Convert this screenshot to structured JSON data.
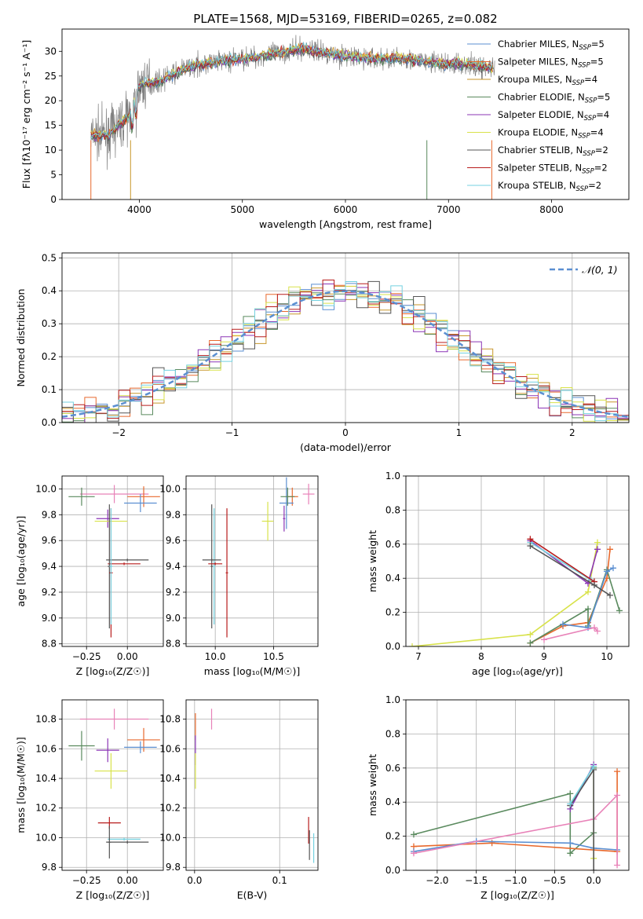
{
  "title": "PLATE=1568, MJD=53169, FIBERID=0265, z=0.082",
  "colors": {
    "Chabrier MILES": "#5b8fd1",
    "Salpeter MILES": "#e8692d",
    "Kroupa MILES": "#c8962a",
    "Chabrier ELODIE": "#5a8a5e",
    "Salpeter ELODIE": "#8b35b5",
    "Kroupa ELODIE": "#d8e24a",
    "Chabrier STELIB": "#555555",
    "Salpeter STELIB": "#b81d1d",
    "Kroupa STELIB": "#74d1e0",
    "Kroupa MILES pink": "#e882b8"
  },
  "chart_data": [
    {
      "id": "spectrum",
      "type": "line",
      "title": "PLATE=1568, MJD=53169, FIBERID=0265, z=0.082",
      "xlabel": "wavelength [Angstrom, rest frame]",
      "ylabel": "Flux [fλ10⁻¹⁷ erg cm⁻² s⁻¹ A⁻¹]",
      "xlim": [
        3250,
        8750
      ],
      "ylim": [
        0,
        34.5
      ],
      "xticks": [
        4000,
        5000,
        6000,
        7000,
        8000
      ],
      "yticks": [
        0,
        5,
        10,
        15,
        20,
        25,
        30
      ],
      "grid": false,
      "legend": "right",
      "legend_entries": [
        {
          "name": "Chabrier MILES",
          "sub": "SSP",
          "n": "=5"
        },
        {
          "name": "Salpeter MILES",
          "sub": "SSP",
          "n": "=5"
        },
        {
          "name": "Kroupa MILES",
          "sub": "SSP",
          "n": "=4"
        },
        {
          "name": "Chabrier ELODIE",
          "sub": "SSP",
          "n": "=5"
        },
        {
          "name": "Salpeter ELODIE",
          "sub": "SSP",
          "n": "=4"
        },
        {
          "name": "Kroupa ELODIE",
          "sub": "SSP",
          "n": "=4"
        },
        {
          "name": "Chabrier STELIB",
          "sub": "SSP",
          "n": "=2"
        },
        {
          "name": "Salpeter STELIB",
          "sub": "SSP",
          "n": "=2"
        },
        {
          "name": "Kroupa STELIB",
          "sub": "SSP",
          "n": "=2"
        }
      ],
      "envelope": {
        "x": [
          3530,
          3700,
          3900,
          4000,
          4200,
          4500,
          4800,
          5000,
          5300,
          5600,
          6000,
          6300,
          6600,
          6900,
          7100,
          7300,
          7450
        ],
        "y": [
          13,
          13,
          17,
          23,
          24,
          27,
          28,
          28.5,
          29.5,
          30.5,
          29,
          28.5,
          28.5,
          27.5,
          27.5,
          27,
          26.5
        ]
      }
    },
    {
      "id": "residuals",
      "type": "histogram",
      "xlabel": "(data-model)/error",
      "ylabel": "Normed distribution",
      "xlim": [
        -2.5,
        2.5
      ],
      "ylim": [
        0,
        0.515
      ],
      "xticks": [
        -2,
        -1,
        0,
        1,
        2
      ],
      "yticks": [
        0.0,
        0.1,
        0.2,
        0.3,
        0.4,
        0.5
      ],
      "grid": true,
      "legend": "top-right",
      "legend_entries": [
        {
          "name": "𝒩(0, 1)"
        }
      ]
    },
    {
      "id": "age-vs-Z",
      "type": "scatter",
      "xlabel": "Z [log₁₀(Z/Z☉)]",
      "ylabel": "age  [log₁₀(age/yr)]",
      "xlim": [
        -0.4,
        0.22
      ],
      "ylim": [
        8.78,
        10.1
      ],
      "xticks": [
        -0.25,
        0.0
      ],
      "yticks": [
        8.8,
        9.0,
        9.2,
        9.4,
        9.6,
        9.8,
        10.0
      ],
      "grid": true,
      "errorbars": [
        {
          "model": "Kroupa MILES pink",
          "x": -0.08,
          "y": 9.96,
          "xerr": 0.21,
          "yerr": 0.07
        },
        {
          "model": "Salpeter MILES",
          "x": 0.1,
          "y": 9.94,
          "xerr": 0.1,
          "yerr": 0.08
        },
        {
          "model": "Chabrier MILES",
          "x": 0.08,
          "y": 9.89,
          "xerr": 0.1,
          "yerr": 0.07
        },
        {
          "model": "Chabrier ELODIE",
          "x": -0.28,
          "y": 9.94,
          "xerr": 0.08,
          "yerr": 0.07
        },
        {
          "model": "Salpeter ELODIE",
          "x": -0.12,
          "y": 9.77,
          "xerr": 0.07,
          "yerr": 0.07
        },
        {
          "model": "Kroupa ELODIE",
          "x": -0.1,
          "y": 9.75,
          "xerr": 0.1,
          "yerr": 0.07
        },
        {
          "model": "Chabrier STELIB",
          "x": 0.0,
          "y": 9.45,
          "xerr": 0.13,
          "yerr": 0.01
        },
        {
          "model": "Salpeter STELIB",
          "x": -0.02,
          "y": 9.42,
          "xerr": 0.1,
          "yerr": 0.01
        },
        {
          "model": "Chabrier STELIB",
          "x": -0.11,
          "y": 9.4,
          "xerr": 0.01,
          "yerr": 0.48
        },
        {
          "model": "Salpeter STELIB",
          "x": -0.1,
          "y": 9.35,
          "xerr": 0.01,
          "yerr": 0.5
        },
        {
          "model": "Kroupa STELIB",
          "x": -0.1,
          "y": 9.4,
          "xerr": 0.01,
          "yerr": 0.45
        }
      ]
    },
    {
      "id": "age-vs-mass",
      "type": "scatter",
      "xlabel": "mass [log₁₀(M/M☉)]",
      "xlim": [
        9.75,
        10.88
      ],
      "ylim": [
        8.78,
        10.1
      ],
      "xticks": [
        10.0,
        10.5
      ],
      "yticks": [
        8.8,
        9.0,
        9.2,
        9.4,
        9.6,
        9.8,
        10.0
      ],
      "grid": true,
      "errorbars": [
        {
          "model": "Kroupa MILES pink",
          "x": 10.8,
          "y": 9.96,
          "xerr": 0.05,
          "yerr": 0.08
        },
        {
          "model": "Salpeter MILES",
          "x": 10.66,
          "y": 9.94,
          "xerr": 0.05,
          "yerr": 0.07
        },
        {
          "model": "Chabrier MILES",
          "x": 10.61,
          "y": 9.89,
          "xerr": 0.06,
          "yerr": 0.2
        },
        {
          "model": "Chabrier ELODIE",
          "x": 10.62,
          "y": 9.94,
          "xerr": 0.06,
          "yerr": 0.07
        },
        {
          "model": "Salpeter ELODIE",
          "x": 10.59,
          "y": 9.77,
          "xerr": 0.01,
          "yerr": 0.1
        },
        {
          "model": "Kroupa ELODIE",
          "x": 10.45,
          "y": 9.75,
          "xerr": 0.05,
          "yerr": 0.15
        },
        {
          "model": "Chabrier STELIB",
          "x": 9.97,
          "y": 9.4,
          "xerr": 0.01,
          "yerr": 0.48
        },
        {
          "model": "Salpeter STELIB",
          "x": 10.1,
          "y": 9.35,
          "xerr": 0.01,
          "yerr": 0.5
        },
        {
          "model": "Kroupa STELIB",
          "x": 9.99,
          "y": 9.4,
          "xerr": 0.01,
          "yerr": 0.45
        },
        {
          "model": "Chabrier STELIB",
          "x": 9.97,
          "y": 9.45,
          "xerr": 0.08,
          "yerr": 0.01
        },
        {
          "model": "Salpeter STELIB",
          "x": 10.0,
          "y": 9.42,
          "xerr": 0.06,
          "yerr": 0.01
        }
      ]
    },
    {
      "id": "weight-vs-age",
      "type": "line",
      "xlabel": "age  [log₁₀(age/yr)]",
      "ylabel": "mass weight",
      "xlim": [
        6.8,
        10.35
      ],
      "ylim": [
        0,
        1
      ],
      "xticks": [
        7,
        8,
        9,
        10
      ],
      "yticks": [
        0.0,
        0.2,
        0.4,
        0.6,
        0.8,
        1.0
      ],
      "grid": true,
      "series": [
        {
          "model": "Kroupa ELODIE",
          "x": [
            6.9,
            8.78,
            9.7,
            9.85
          ],
          "y": [
            0.0,
            0.07,
            0.32,
            0.61
          ]
        },
        {
          "model": "Salpeter MILES",
          "x": [
            8.78,
            9.3,
            9.7,
            10.0,
            10.05
          ],
          "y": [
            0.02,
            0.12,
            0.14,
            0.4,
            0.57
          ]
        },
        {
          "model": "Chabrier ELODIE",
          "x": [
            8.78,
            9.7,
            9.7,
            10.0,
            10.2
          ],
          "y": [
            0.02,
            0.22,
            0.12,
            0.45,
            0.21
          ]
        },
        {
          "model": "Salpeter ELODIE",
          "x": [
            8.78,
            9.7,
            9.85
          ],
          "y": [
            0.62,
            0.37,
            0.57
          ]
        },
        {
          "model": "Kroupa STELIB",
          "x": [
            8.78,
            9.75
          ],
          "y": [
            0.61,
            0.39
          ]
        },
        {
          "model": "Chabrier MILES",
          "x": [
            9.3,
            9.7,
            10.0,
            10.1
          ],
          "y": [
            0.13,
            0.11,
            0.44,
            0.46
          ]
        },
        {
          "model": "Kroupa MILES pink",
          "x": [
            9.0,
            9.8,
            9.85
          ],
          "y": [
            0.04,
            0.11,
            0.09
          ]
        },
        {
          "model": "Salpeter STELIB",
          "x": [
            8.78,
            9.8
          ],
          "y": [
            0.63,
            0.38
          ]
        },
        {
          "model": "Chabrier STELIB",
          "x": [
            8.78,
            9.8,
            10.05
          ],
          "y": [
            0.59,
            0.36,
            0.3
          ]
        }
      ]
    },
    {
      "id": "mass-vs-Z",
      "type": "scatter",
      "xlabel": "Z [log₁₀(Z/Z☉)]",
      "ylabel": "mass [log₁₀(M/M☉)]",
      "xlim": [
        -0.4,
        0.22
      ],
      "ylim": [
        9.78,
        10.93
      ],
      "xticks": [
        -0.25,
        0.0
      ],
      "yticks": [
        9.8,
        10.0,
        10.2,
        10.4,
        10.6,
        10.8
      ],
      "grid": true,
      "errorbars": [
        {
          "model": "Kroupa MILES pink",
          "x": -0.08,
          "y": 10.8,
          "xerr": 0.21,
          "yerr": 0.07
        },
        {
          "model": "Salpeter MILES",
          "x": 0.1,
          "y": 10.66,
          "xerr": 0.1,
          "yerr": 0.08
        },
        {
          "model": "Chabrier MILES",
          "x": 0.08,
          "y": 10.61,
          "xerr": 0.1,
          "yerr": 0.04
        },
        {
          "model": "Chabrier ELODIE",
          "x": -0.28,
          "y": 10.62,
          "xerr": 0.08,
          "yerr": 0.1
        },
        {
          "model": "Salpeter ELODIE",
          "x": -0.12,
          "y": 10.59,
          "xerr": 0.07,
          "yerr": 0.08
        },
        {
          "model": "Kroupa ELODIE",
          "x": -0.1,
          "y": 10.45,
          "xerr": 0.1,
          "yerr": 0.12
        },
        {
          "model": "Salpeter STELIB",
          "x": -0.11,
          "y": 10.1,
          "xerr": 0.07,
          "yerr": 0.04
        },
        {
          "model": "Chabrier STELIB",
          "x": 0.0,
          "y": 9.97,
          "xerr": 0.13,
          "yerr": 0.01
        },
        {
          "model": "Kroupa STELIB",
          "x": -0.02,
          "y": 9.99,
          "xerr": 0.1,
          "yerr": 0.01
        },
        {
          "model": "Chabrier STELIB",
          "x": -0.11,
          "y": 9.97,
          "xerr": 0.01,
          "yerr": 0.11
        }
      ]
    },
    {
      "id": "mass-vs-EBV",
      "type": "scatter",
      "xlabel": "E(B-V)",
      "xlim": [
        -0.01,
        0.145
      ],
      "ylim": [
        9.78,
        10.93
      ],
      "xticks": [
        0.0,
        0.1
      ],
      "yticks": [
        9.8,
        10.0,
        10.2,
        10.4,
        10.6,
        10.8
      ],
      "grid": true,
      "errorbars": [
        {
          "model": "Kroupa MILES pink",
          "x": 0.02,
          "y": 10.8,
          "xerr": 0,
          "yerr": 0.07
        },
        {
          "model": "Salpeter MILES",
          "x": 0.001,
          "y": 10.75,
          "xerr": 0,
          "yerr": 0.09
        },
        {
          "model": "Salpeter ELODIE",
          "x": 0.001,
          "y": 10.59,
          "xerr": 0,
          "yerr": 0.1
        },
        {
          "model": "Kroupa ELODIE",
          "x": 0.001,
          "y": 10.45,
          "xerr": 0,
          "yerr": 0.12
        },
        {
          "model": "Salpeter STELIB",
          "x": 0.134,
          "y": 10.05,
          "xerr": 0,
          "yerr": 0.09
        },
        {
          "model": "Chabrier STELIB",
          "x": 0.135,
          "y": 9.95,
          "xerr": 0,
          "yerr": 0.1
        },
        {
          "model": "Kroupa STELIB",
          "x": 0.14,
          "y": 9.93,
          "xerr": 0,
          "yerr": 0.1
        }
      ]
    },
    {
      "id": "weight-vs-Z",
      "type": "line",
      "xlabel": "Z [log₁₀(Z/Z☉)]",
      "ylabel": "mass weight",
      "xlim": [
        -2.4,
        0.45
      ],
      "ylim": [
        0,
        1
      ],
      "xticks": [
        -2.0,
        -1.5,
        -1.0,
        -0.5,
        0.0
      ],
      "yticks": [
        0.0,
        0.2,
        0.4,
        0.6,
        0.8,
        1.0
      ],
      "grid": true,
      "series": [
        {
          "model": "Chabrier ELODIE",
          "x": [
            -2.3,
            -0.3,
            -0.3,
            0.0,
            0.0
          ],
          "y": [
            0.21,
            0.45,
            0.1,
            0.22,
            0.6
          ]
        },
        {
          "model": "Salpeter MILES",
          "x": [
            -2.3,
            -1.3,
            0.3,
            0.3
          ],
          "y": [
            0.14,
            0.16,
            0.11,
            0.58
          ]
        },
        {
          "model": "Chabrier MILES",
          "x": [
            -2.3,
            -1.5,
            -0.3,
            0.0,
            0.3
          ],
          "y": [
            0.11,
            0.17,
            0.16,
            0.13,
            0.12
          ]
        },
        {
          "model": "Kroupa MILES pink",
          "x": [
            -2.3,
            0.0,
            0.3,
            0.3
          ],
          "y": [
            0.1,
            0.3,
            0.44,
            0.03
          ]
        },
        {
          "model": "Salpeter ELODIE",
          "x": [
            -0.3,
            0.0
          ],
          "y": [
            0.36,
            0.62
          ]
        },
        {
          "model": "Kroupa ELODIE",
          "x": [
            0.0,
            0.0
          ],
          "y": [
            0.61,
            0.07
          ]
        },
        {
          "model": "Chabrier STELIB",
          "x": [
            -0.3,
            0.0,
            0.0
          ],
          "y": [
            0.38,
            0.59,
            0.0
          ]
        },
        {
          "model": "Kroupa STELIB",
          "x": [
            -0.3,
            0.0
          ],
          "y": [
            0.39,
            0.61
          ]
        }
      ]
    }
  ]
}
